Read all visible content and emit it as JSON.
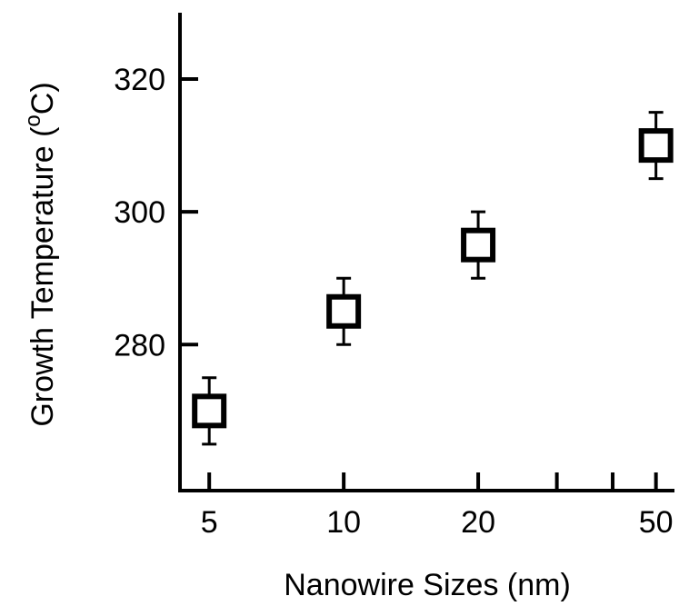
{
  "chart_data": {
    "type": "scatter",
    "title": "",
    "xlabel": "Nanowire Sizes (nm)",
    "ylabel": {
      "prefix": "Growth Temperature (",
      "superscript": "o",
      "suffix": "C)"
    },
    "x_scale": "log",
    "xlim": [
      4.3,
      55
    ],
    "ylim": [
      258,
      330
    ],
    "x_major_ticks": [
      {
        "value": 5,
        "label": "5"
      },
      {
        "value": 10,
        "label": "10"
      },
      {
        "value": 20,
        "label": "20"
      },
      {
        "value": 50,
        "label": "50"
      }
    ],
    "x_minor_ticks": [
      30,
      40
    ],
    "y_ticks": [
      {
        "value": 280,
        "label": "280"
      },
      {
        "value": 300,
        "label": "300"
      },
      {
        "value": 320,
        "label": "320"
      }
    ],
    "series": [
      {
        "marker": "open-square",
        "color": "#000000",
        "points": [
          {
            "x": 5,
            "y": 270,
            "err": 5
          },
          {
            "x": 10,
            "y": 285,
            "err": 5
          },
          {
            "x": 20,
            "y": 295,
            "err": 5
          },
          {
            "x": 50,
            "y": 310,
            "err": 5
          }
        ]
      }
    ],
    "grid": false,
    "legend": "none"
  }
}
